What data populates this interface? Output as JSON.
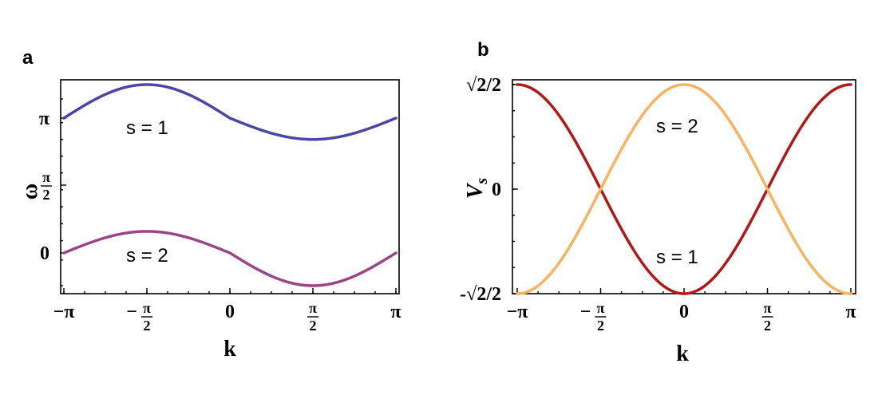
{
  "chart_data": [
    {
      "panel": "a",
      "type": "line",
      "xlabel": "k",
      "ylabel": "ω",
      "xlim": [
        -3.14159,
        3.14159
      ],
      "ylim": [
        -0.55,
        2.2
      ],
      "x_ticks": [
        {
          "value": -3.14159,
          "label": "−π"
        },
        {
          "value": -1.5708,
          "label": "−π/2",
          "sign": "−",
          "num": "π",
          "den": "2"
        },
        {
          "value": 0,
          "label": "0"
        },
        {
          "value": 1.5708,
          "label": "π/2",
          "num": "π",
          "den": "2"
        },
        {
          "value": 3.14159,
          "label": "π"
        }
      ],
      "y_ticks": [
        {
          "value": 0,
          "label": "0"
        },
        {
          "value": 1.5708,
          "label": "π/2",
          "num": "π",
          "den": "2"
        },
        {
          "value": 3.14159,
          "label": "π"
        }
      ],
      "series": [
        {
          "name": "s = 1",
          "color": "#4a46a6",
          "formula": "omega = pi + 0.5*sin(-k)",
          "x_range": [
            -3.14159,
            3.14159
          ]
        },
        {
          "name": "s = 2",
          "color": "#9a4686",
          "formula": "omega = 0.5*sin(-k)",
          "x_range": [
            -3.14159,
            3.14159
          ]
        }
      ],
      "note": "y-axis is not uniformly spaced in the original image; plotted using the image's tick positions"
    },
    {
      "panel": "b",
      "type": "line",
      "xlabel": "k",
      "ylabel": "V",
      "ylabel_sub": "s",
      "xlim": [
        -3.14159,
        3.14159
      ],
      "ylim": [
        -0.7071,
        0.7071
      ],
      "x_ticks": [
        {
          "value": -3.14159,
          "label": "−π"
        },
        {
          "value": -1.5708,
          "label": "−π/2",
          "sign": "−",
          "num": "π",
          "den": "2"
        },
        {
          "value": 0,
          "label": "0"
        },
        {
          "value": 1.5708,
          "label": "π/2",
          "num": "π",
          "den": "2"
        },
        {
          "value": 3.14159,
          "label": "π"
        }
      ],
      "y_ticks": [
        {
          "value": 0.7071,
          "label": "√2/2"
        },
        {
          "value": 0,
          "label": "0"
        },
        {
          "value": -0.7071,
          "label": "-√2/2"
        }
      ],
      "series": [
        {
          "name": "s = 1",
          "color": "#b01818",
          "formula": "V = (sqrt(2)/2) * (-cos(k))",
          "x_range": [
            -3.14159,
            3.14159
          ]
        },
        {
          "name": "s = 2",
          "color": "#f9b360",
          "formula": "V = (sqrt(2)/2) * cos(k)",
          "x_range": [
            -3.14159,
            3.14159
          ]
        }
      ]
    }
  ],
  "panels": {
    "a": {
      "label": "a",
      "annotation_top": "s = 1",
      "annotation_bottom": "s = 2"
    },
    "b": {
      "label": "b",
      "annotation_top": "s = 2",
      "annotation_bottom": "s = 1"
    }
  }
}
